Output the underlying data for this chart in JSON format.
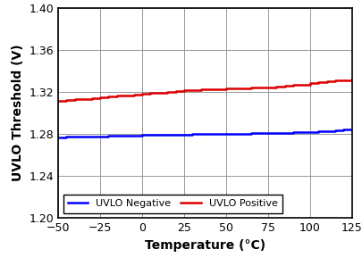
{
  "xlabel": "Temperature (°C)",
  "ylabel": "UVLO Threshold (V)",
  "xlim": [
    -50,
    125
  ],
  "ylim": [
    1.2,
    1.4
  ],
  "xticks": [
    -50,
    -25,
    0,
    25,
    50,
    75,
    100,
    125
  ],
  "yticks": [
    1.2,
    1.24,
    1.28,
    1.32,
    1.36,
    1.4
  ],
  "blue_x": [
    -50,
    -45,
    -40,
    -35,
    -30,
    -25,
    -20,
    -15,
    -10,
    -5,
    0,
    5,
    10,
    15,
    20,
    25,
    30,
    35,
    40,
    45,
    50,
    55,
    60,
    65,
    70,
    75,
    80,
    85,
    90,
    95,
    100,
    105,
    110,
    115,
    120,
    125
  ],
  "blue_y": [
    1.277,
    1.2772,
    1.2775,
    1.2777,
    1.2778,
    1.278,
    1.2782,
    1.2784,
    1.2785,
    1.2787,
    1.279,
    1.2791,
    1.2793,
    1.2794,
    1.2795,
    1.2797,
    1.28,
    1.28,
    1.28,
    1.2801,
    1.2803,
    1.2804,
    1.2805,
    1.2806,
    1.2808,
    1.2809,
    1.281,
    1.2812,
    1.2815,
    1.2817,
    1.282,
    1.2825,
    1.283,
    1.2836,
    1.284,
    1.2845
  ],
  "red_x": [
    -50,
    -45,
    -40,
    -35,
    -30,
    -25,
    -20,
    -15,
    -10,
    -5,
    0,
    5,
    10,
    15,
    20,
    25,
    30,
    35,
    40,
    45,
    50,
    55,
    60,
    65,
    70,
    75,
    80,
    85,
    90,
    95,
    100,
    105,
    110,
    115,
    120,
    125
  ],
  "red_y": [
    1.3115,
    1.3122,
    1.313,
    1.3137,
    1.3145,
    1.3152,
    1.3158,
    1.3164,
    1.317,
    1.3177,
    1.3183,
    1.3189,
    1.3195,
    1.3202,
    1.321,
    1.3215,
    1.322,
    1.3224,
    1.3228,
    1.323,
    1.3232,
    1.3235,
    1.3238,
    1.324,
    1.3243,
    1.3247,
    1.325,
    1.3257,
    1.3265,
    1.3273,
    1.3283,
    1.3291,
    1.33,
    1.3308,
    1.3315,
    1.3325
  ],
  "blue_color": "#0000ff",
  "red_color": "#dd0000",
  "line_width": 1.8,
  "legend_blue": "UVLO Negative",
  "legend_red": "UVLO Positive",
  "background_color": "#ffffff",
  "grid_color": "#999999",
  "tick_fontsize": 9,
  "label_fontsize": 10
}
